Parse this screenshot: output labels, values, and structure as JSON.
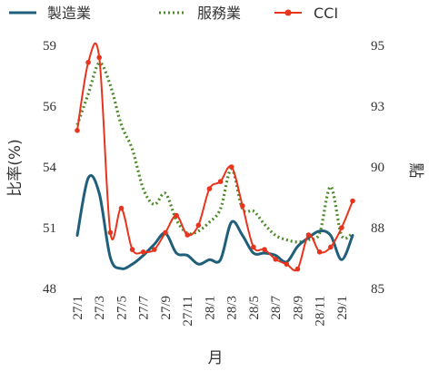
{
  "chart_data": {
    "type": "line",
    "xlabel": "月",
    "ylabel_left": "比率(%)",
    "ylabel_right": "點",
    "y_left_ticks": [
      "48",
      "51",
      "54",
      "56",
      "59"
    ],
    "y_left_lim": [
      48,
      59
    ],
    "y_right_ticks": [
      "85",
      "88",
      "90",
      "93",
      "95"
    ],
    "y_right_lim": [
      85,
      95
    ],
    "x_tick_labels": [
      "27/1",
      "27/3",
      "27/5",
      "27/7",
      "27/9",
      "27/11",
      "28/1",
      "28/3",
      "28/5",
      "28/7",
      "28/9",
      "28/11",
      "29/1"
    ],
    "x": [
      "27/1",
      "27/2",
      "27/3",
      "27/4",
      "27/5",
      "27/6",
      "27/7",
      "27/8",
      "27/9",
      "27/10",
      "27/11",
      "27/12",
      "28/1",
      "28/2",
      "28/3",
      "28/4",
      "28/5",
      "28/6",
      "28/7",
      "28/8",
      "28/9",
      "28/10",
      "28/11",
      "28/12",
      "29/1",
      "29/2"
    ],
    "grid": false,
    "legend_position": "top",
    "series": [
      {
        "name": "製造業",
        "axis": "left",
        "color": "#1F5F7A",
        "style": "solid",
        "values": [
          50.4,
          53.0,
          52.3,
          49.4,
          48.9,
          49.1,
          49.5,
          50.0,
          50.5,
          49.6,
          49.5,
          49.1,
          49.3,
          49.3,
          51.0,
          50.4,
          49.6,
          49.6,
          49.5,
          49.2,
          49.9,
          50.3,
          50.6,
          50.4,
          49.3,
          50.4
        ]
      },
      {
        "name": "服務業",
        "axis": "left",
        "color": "#4F8A2C",
        "style": "dotted",
        "values": [
          55.4,
          56.8,
          58.2,
          57.2,
          55.4,
          54.3,
          52.5,
          51.8,
          52.3,
          51.1,
          50.5,
          50.6,
          51.0,
          51.6,
          53.4,
          51.6,
          51.5,
          50.9,
          50.4,
          50.2,
          50.1,
          50.2,
          50.5,
          52.6,
          50.4,
          50.5
        ]
      },
      {
        "name": "CCI",
        "axis": "right",
        "color": "#E8341C",
        "style": "solid-markers",
        "values": [
          91.5,
          94.3,
          94.5,
          87.3,
          88.3,
          86.6,
          86.5,
          86.6,
          87.3,
          88.0,
          87.2,
          87.6,
          89.1,
          89.4,
          90.0,
          88.4,
          86.7,
          86.6,
          86.2,
          86.0,
          85.8,
          87.2,
          86.5,
          86.7,
          87.5,
          88.6
        ]
      }
    ]
  }
}
